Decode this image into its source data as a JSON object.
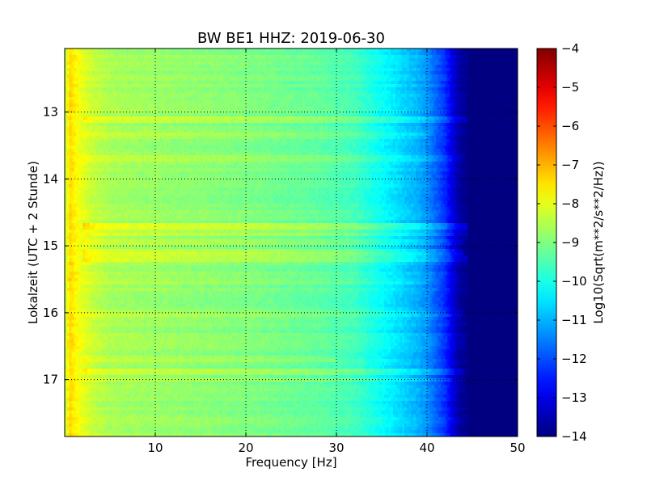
{
  "chart_data": {
    "type": "heatmap",
    "title": "BW BE1 HHZ: 2019-06-30",
    "xlabel": "Frequency [Hz]",
    "ylabel": "Lokalzeit (UTC + 2 Stunde)",
    "colorbar_label": "Log10(Sqrt(m**2/s**2/Hz))",
    "colormap": "jet",
    "x_range": [
      0,
      50
    ],
    "y_range": [
      12.05,
      17.85
    ],
    "y_inverted": true,
    "color_range": [
      -14,
      -4
    ],
    "grid": true,
    "x_ticks": [
      10,
      20,
      30,
      40,
      50
    ],
    "x_tick_labels": [
      "10",
      "20",
      "30",
      "40",
      "50"
    ],
    "y_ticks": [
      13,
      14,
      15,
      16,
      17
    ],
    "y_tick_labels": [
      "13",
      "14",
      "15",
      "16",
      "17"
    ],
    "colorbar_ticks": [
      -4,
      -5,
      -6,
      -7,
      -8,
      -9,
      -10,
      -11,
      -12,
      -13,
      -14
    ],
    "colorbar_tick_labels": [
      "−4",
      "−5",
      "−6",
      "−7",
      "−8",
      "−9",
      "−10",
      "−11",
      "−12",
      "−13",
      "−14"
    ],
    "spectrum_profile": {
      "frequency_hz": [
        0,
        0.5,
        1,
        2,
        3,
        5,
        8,
        12,
        16,
        20,
        24,
        28,
        30,
        32,
        33.5,
        35,
        37,
        39,
        40,
        41,
        42,
        43,
        43.5,
        44,
        45,
        50
      ],
      "log10_amplitude": [
        -8.6,
        -7.3,
        -7.6,
        -8.0,
        -8.3,
        -8.6,
        -8.7,
        -8.8,
        -8.9,
        -9.0,
        -9.15,
        -9.3,
        -9.45,
        -9.6,
        -9.9,
        -10.2,
        -10.6,
        -11.0,
        -11.3,
        -11.8,
        -12.3,
        -13.2,
        -13.6,
        -13.8,
        -13.9,
        -14.0
      ]
    },
    "noise_bands": [
      {
        "time": 13.1,
        "log10_amplitude_offset": 0.5,
        "max_frequency_hz": 46
      },
      {
        "time": 13.35,
        "log10_amplitude_offset": 0.25,
        "max_frequency_hz": 40
      },
      {
        "time": 13.7,
        "log10_amplitude_offset": 0.3,
        "max_frequency_hz": 44
      },
      {
        "time": 14.7,
        "log10_amplitude_offset": 0.6,
        "max_frequency_hz": 46
      },
      {
        "time": 14.8,
        "log10_amplitude_offset": 0.4,
        "max_frequency_hz": 46
      },
      {
        "time": 14.95,
        "log10_amplitude_offset": 0.3,
        "max_frequency_hz": 44
      },
      {
        "time": 15.1,
        "log10_amplitude_offset": 0.5,
        "max_frequency_hz": 44
      },
      {
        "time": 15.2,
        "log10_amplitude_offset": 0.6,
        "max_frequency_hz": 45
      },
      {
        "time": 15.55,
        "log10_amplitude_offset": 0.25,
        "max_frequency_hz": 40
      },
      {
        "time": 16.0,
        "log10_amplitude_offset": 0.25,
        "max_frequency_hz": 44
      },
      {
        "time": 16.7,
        "log10_amplitude_offset": 0.3,
        "max_frequency_hz": 30
      },
      {
        "time": 16.9,
        "log10_amplitude_offset": 0.35,
        "max_frequency_hz": 44
      },
      {
        "time": 17.0,
        "log10_amplitude_offset": 0.35,
        "max_frequency_hz": 44
      }
    ]
  }
}
